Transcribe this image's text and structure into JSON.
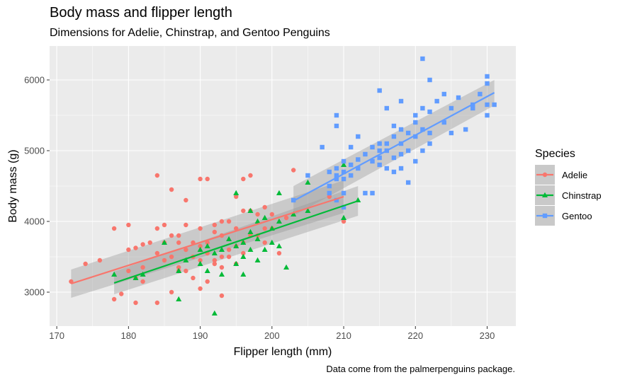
{
  "chart_data": {
    "type": "scatter",
    "title": "Body mass and flipper length",
    "subtitle": "Dimensions for Adelie, Chinstrap, and Gentoo Penguins",
    "caption": "Data come from the palmerpenguins package.",
    "xlabel": "Flipper length (mm)",
    "ylabel": "Body mass (g)",
    "xlim": [
      169,
      234
    ],
    "ylim": [
      2520,
      6480
    ],
    "x_ticks": [
      170,
      180,
      190,
      200,
      210,
      220,
      230
    ],
    "y_ticks": [
      3000,
      4000,
      5000,
      6000
    ],
    "grid": true,
    "legend": {
      "title": "Species",
      "placement": "right"
    },
    "series": [
      {
        "name": "Adelie",
        "color": "#F8766D",
        "marker": "circle",
        "trend": {
          "x": [
            172,
            210
          ],
          "y": [
            3120,
            4350
          ],
          "se_low": [
            2920,
            4120
          ],
          "se_high": [
            3320,
            4580
          ]
        },
        "points": [
          [
            172,
            3150
          ],
          [
            174,
            3400
          ],
          [
            176,
            3450
          ],
          [
            178,
            2900
          ],
          [
            178,
            3900
          ],
          [
            179,
            2975
          ],
          [
            180,
            3600
          ],
          [
            180,
            3300
          ],
          [
            180,
            3950
          ],
          [
            181,
            3625
          ],
          [
            181,
            3200
          ],
          [
            181,
            2850
          ],
          [
            182,
            3150
          ],
          [
            182,
            3675
          ],
          [
            182,
            3350
          ],
          [
            183,
            3700
          ],
          [
            184,
            3550
          ],
          [
            184,
            2850
          ],
          [
            184,
            3900
          ],
          [
            184,
            4650
          ],
          [
            185,
            3700
          ],
          [
            185,
            3950
          ],
          [
            185,
            3450
          ],
          [
            186,
            3800
          ],
          [
            186,
            3000
          ],
          [
            186,
            4450
          ],
          [
            186,
            3500
          ],
          [
            187,
            3700
          ],
          [
            187,
            3300
          ],
          [
            187,
            3350
          ],
          [
            187,
            3800
          ],
          [
            188,
            3600
          ],
          [
            188,
            3950
          ],
          [
            188,
            3300
          ],
          [
            188,
            4300
          ],
          [
            189,
            3500
          ],
          [
            189,
            3200
          ],
          [
            189,
            3700
          ],
          [
            190,
            3450
          ],
          [
            190,
            3050
          ],
          [
            190,
            4600
          ],
          [
            190,
            3900
          ],
          [
            190,
            3650
          ],
          [
            191,
            3700
          ],
          [
            191,
            3550
          ],
          [
            191,
            3150
          ],
          [
            191,
            4600
          ],
          [
            192,
            3450
          ],
          [
            192,
            3950
          ],
          [
            192,
            3400
          ],
          [
            192,
            3850
          ],
          [
            193,
            3350
          ],
          [
            193,
            3800
          ],
          [
            193,
            4000
          ],
          [
            193,
            3500
          ],
          [
            193,
            2950
          ],
          [
            194,
            3500
          ],
          [
            194,
            4000
          ],
          [
            194,
            3600
          ],
          [
            195,
            3650
          ],
          [
            195,
            4350
          ],
          [
            195,
            3400
          ],
          [
            195,
            3900
          ],
          [
            196,
            3550
          ],
          [
            196,
            4150
          ],
          [
            196,
            4600
          ],
          [
            196,
            3700
          ],
          [
            197,
            4150
          ],
          [
            197,
            3800
          ],
          [
            197,
            4650
          ],
          [
            198,
            4100
          ],
          [
            198,
            3800
          ],
          [
            199,
            3900
          ],
          [
            199,
            4200
          ],
          [
            199,
            3700
          ],
          [
            200,
            3900
          ],
          [
            200,
            4100
          ],
          [
            201,
            3550
          ],
          [
            202,
            4050
          ],
          [
            203,
            4725
          ],
          [
            208,
            4350
          ],
          [
            210,
            4000
          ]
        ]
      },
      {
        "name": "Chinstrap",
        "color": "#00BA38",
        "marker": "triangle",
        "trend": {
          "x": [
            178,
            212
          ],
          "y": [
            3130,
            4290
          ],
          "se_low": [
            2970,
            4080
          ],
          "se_high": [
            3290,
            4500
          ]
        },
        "points": [
          [
            178,
            3250
          ],
          [
            181,
            3200
          ],
          [
            182,
            3250
          ],
          [
            185,
            3700
          ],
          [
            187,
            2900
          ],
          [
            187,
            3300
          ],
          [
            188,
            3450
          ],
          [
            190,
            3400
          ],
          [
            190,
            3600
          ],
          [
            191,
            3300
          ],
          [
            191,
            3650
          ],
          [
            192,
            2700
          ],
          [
            192,
            3550
          ],
          [
            193,
            3250
          ],
          [
            193,
            3600
          ],
          [
            194,
            3750
          ],
          [
            195,
            3400
          ],
          [
            195,
            3650
          ],
          [
            195,
            4400
          ],
          [
            196,
            3500
          ],
          [
            196,
            3250
          ],
          [
            196,
            3700
          ],
          [
            197,
            3600
          ],
          [
            197,
            3850
          ],
          [
            197,
            4150
          ],
          [
            198,
            3750
          ],
          [
            198,
            3450
          ],
          [
            198,
            4000
          ],
          [
            199,
            3600
          ],
          [
            199,
            4050
          ],
          [
            200,
            3700
          ],
          [
            200,
            3900
          ],
          [
            201,
            3650
          ],
          [
            201,
            4000
          ],
          [
            201,
            4400
          ],
          [
            202,
            3350
          ],
          [
            203,
            4100
          ],
          [
            205,
            4550
          ],
          [
            205,
            4150
          ],
          [
            210,
            4800
          ],
          [
            210,
            4050
          ],
          [
            212,
            4300
          ]
        ]
      },
      {
        "name": "Gentoo",
        "color": "#619CFF",
        "marker": "square",
        "trend": {
          "x": [
            203,
            231
          ],
          "y": [
            4290,
            5820
          ],
          "se_low": [
            4080,
            5640
          ],
          "se_high": [
            4500,
            6000
          ]
        },
        "points": [
          [
            203,
            4300
          ],
          [
            205,
            4650
          ],
          [
            207,
            5050
          ],
          [
            208,
            4700
          ],
          [
            208,
            4500
          ],
          [
            208,
            4400
          ],
          [
            209,
            4300
          ],
          [
            209,
            4650
          ],
          [
            209,
            5350
          ],
          [
            209,
            4750
          ],
          [
            209,
            4600
          ],
          [
            209,
            5500
          ],
          [
            210,
            4850
          ],
          [
            210,
            4400
          ],
          [
            210,
            4700
          ],
          [
            210,
            4200
          ],
          [
            210,
            4600
          ],
          [
            211,
            4800
          ],
          [
            211,
            4650
          ],
          [
            211,
            5050
          ],
          [
            212,
            4750
          ],
          [
            212,
            4875
          ],
          [
            212,
            5200
          ],
          [
            213,
            4400
          ],
          [
            213,
            4950
          ],
          [
            214,
            4850
          ],
          [
            214,
            5050
          ],
          [
            214,
            4400
          ],
          [
            215,
            5000
          ],
          [
            215,
            5850
          ],
          [
            215,
            5100
          ],
          [
            215,
            4800
          ],
          [
            215,
            4900
          ],
          [
            216,
            4750
          ],
          [
            216,
            5100
          ],
          [
            216,
            5000
          ],
          [
            216,
            5600
          ],
          [
            217,
            4900
          ],
          [
            217,
            5200
          ],
          [
            217,
            4700
          ],
          [
            217,
            5350
          ],
          [
            218,
            4750
          ],
          [
            218,
            5300
          ],
          [
            218,
            5700
          ],
          [
            218,
            5100
          ],
          [
            218,
            4950
          ],
          [
            219,
            5250
          ],
          [
            219,
            5000
          ],
          [
            219,
            4550
          ],
          [
            220,
            5200
          ],
          [
            220,
            5500
          ],
          [
            220,
            5400
          ],
          [
            220,
            4850
          ],
          [
            221,
            5000
          ],
          [
            221,
            6300
          ],
          [
            221,
            5600
          ],
          [
            221,
            5300
          ],
          [
            222,
            5250
          ],
          [
            222,
            5100
          ],
          [
            222,
            6000
          ],
          [
            222,
            5550
          ],
          [
            223,
            5700
          ],
          [
            224,
            5400
          ],
          [
            224,
            5800
          ],
          [
            225,
            5600
          ],
          [
            225,
            5250
          ],
          [
            226,
            5750
          ],
          [
            227,
            5300
          ],
          [
            228,
            5650
          ],
          [
            228,
            5600
          ],
          [
            229,
            5800
          ],
          [
            230,
            5950
          ],
          [
            230,
            6050
          ],
          [
            230,
            5650
          ],
          [
            230,
            5500
          ],
          [
            231,
            5650
          ]
        ]
      }
    ]
  }
}
